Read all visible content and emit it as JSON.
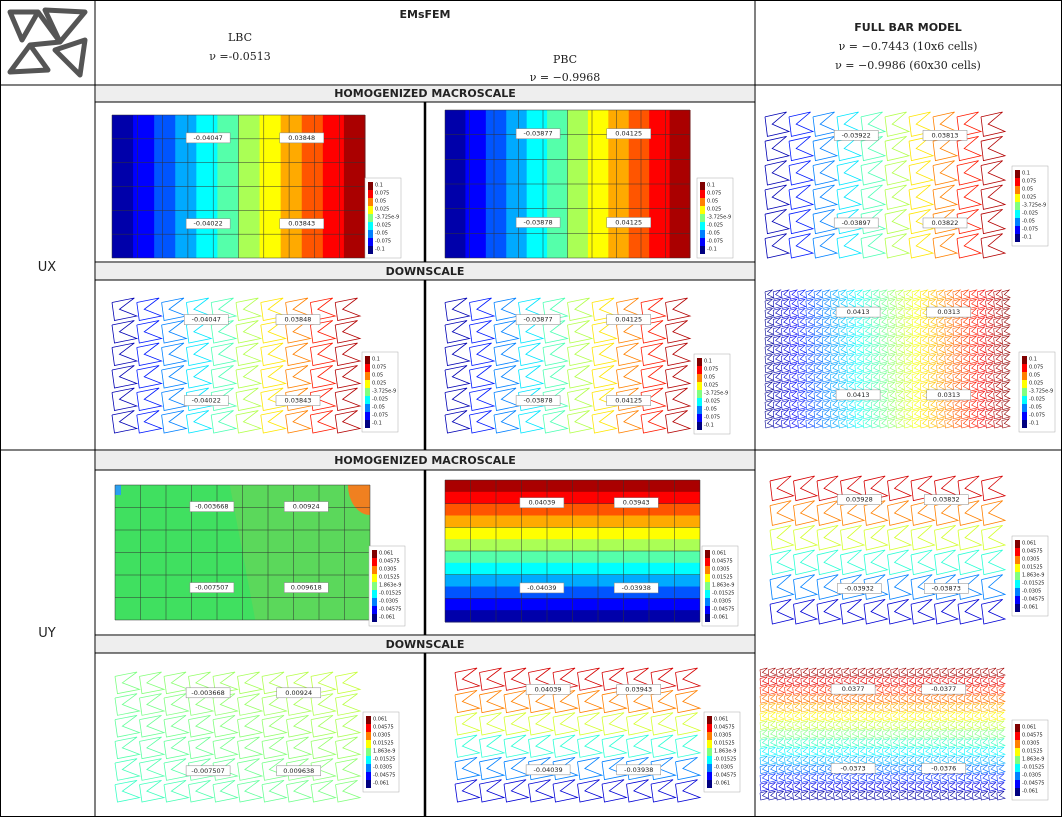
{
  "header": {
    "method": "EMsFEM",
    "lbc": "LBC",
    "lbc_nu": "ν =-0.0513",
    "pbc": "PBC",
    "pbc_nu": "ν = −0.9968",
    "full": "FULL BAR MODEL",
    "full_nu_1": "ν = −0.7443 (10x6 cells)",
    "full_nu_2": "ν = −0.9986 (60x30 cells)"
  },
  "rows": [
    {
      "label": "UX",
      "macro_title": "HOMOGENIZED MACROSCALE",
      "down_title": "DOWNSCALE",
      "colorbar": [
        "0.1",
        "0.075",
        "0.05",
        "0.025",
        "-3.725e-9",
        "-0.025",
        "-0.05",
        "-0.075",
        "-0.1"
      ],
      "panels": [
        {
          "probes": [
            "-0.04047",
            "0.03848",
            "-0.04022",
            "0.03843"
          ]
        },
        {
          "probes": [
            "-0.03877",
            "0.04125",
            "-0.03878",
            "0.04125"
          ]
        },
        {
          "probes": [
            "-0.03922",
            "0.03813",
            "-0.03897",
            "0.03822"
          ]
        },
        {
          "probes": [
            "-0.04047",
            "0.03848",
            "-0.04022",
            "0.03843"
          ]
        },
        {
          "probes": [
            "-0.03877",
            "0.04125",
            "-0.03878",
            "0.04125"
          ]
        },
        {
          "probes": [
            "0.0413",
            "0.0313",
            "0.0413",
            "0.0313"
          ]
        }
      ]
    },
    {
      "label": "UY",
      "macro_title": "HOMOGENIZED MACROSCALE",
      "down_title": "DOWNSCALE",
      "colorbar": [
        "0.061",
        "0.04575",
        "0.0305",
        "0.01525",
        "1.863e-9",
        "-0.01525",
        "-0.0305",
        "-0.04575",
        "-0.061"
      ],
      "panels": [
        {
          "probes": [
            "-0.003668",
            "0.00924",
            "-0.007507",
            "0.009618"
          ]
        },
        {
          "probes": [
            "0.04039",
            "0.03943",
            "-0.04039",
            "-0.03938"
          ]
        },
        {
          "probes": [
            "0.03928",
            "0.03832",
            "-0.03932",
            "-0.03873"
          ]
        },
        {
          "probes": [
            "-0.003668",
            "0.00924",
            "-0.007507",
            "0.009638"
          ]
        },
        {
          "probes": [
            "0.04039",
            "0.03943",
            "-0.04039",
            "-0.03938"
          ]
        },
        {
          "probes": [
            "0.0377",
            "-0.0377",
            "-0.0373",
            "-0.0376"
          ]
        }
      ]
    }
  ]
}
